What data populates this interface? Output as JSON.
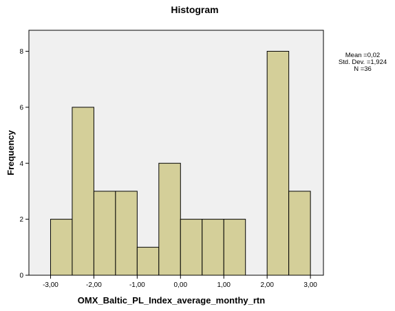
{
  "chart_data": {
    "type": "bar",
    "title": "Histogram",
    "xlabel": "OMX_Baltic_PL_Index_average_monthy_rtn",
    "ylabel": "Frequency",
    "bins": [
      {
        "start": -3.0,
        "end": -2.5,
        "count": 2
      },
      {
        "start": -2.5,
        "end": -2.0,
        "count": 6
      },
      {
        "start": -2.0,
        "end": -1.5,
        "count": 3
      },
      {
        "start": -1.5,
        "end": -1.0,
        "count": 3
      },
      {
        "start": -1.0,
        "end": -0.5,
        "count": 1
      },
      {
        "start": -0.5,
        "end": 0.0,
        "count": 4
      },
      {
        "start": 0.0,
        "end": 0.5,
        "count": 2
      },
      {
        "start": 0.5,
        "end": 1.0,
        "count": 2
      },
      {
        "start": 1.0,
        "end": 1.5,
        "count": 2
      },
      {
        "start": 1.5,
        "end": 2.0,
        "count": 0
      },
      {
        "start": 2.0,
        "end": 2.5,
        "count": 8
      },
      {
        "start": 2.5,
        "end": 3.0,
        "count": 3
      }
    ],
    "xticks": [
      -3,
      -2,
      -1,
      0,
      1,
      2,
      3
    ],
    "xtick_labels": [
      "-3,00",
      "-2,00",
      "-1,00",
      "0,00",
      "1,00",
      "2,00",
      "3,00"
    ],
    "yticks": [
      0,
      2,
      4,
      6,
      8
    ],
    "yticks_labels": [
      "0",
      "2",
      "4",
      "6",
      "8"
    ],
    "xlim": [
      -3.5,
      3.3
    ],
    "ylim": [
      0,
      8.75
    ],
    "grid": false,
    "colors": {
      "bar": "#d4cf99",
      "bar_border": "#000000",
      "plot_bg": "#f0f0f0"
    },
    "stats": {
      "mean": "Mean =0,02",
      "std": "Std. Dev. =1,924",
      "n": "N =36"
    }
  }
}
